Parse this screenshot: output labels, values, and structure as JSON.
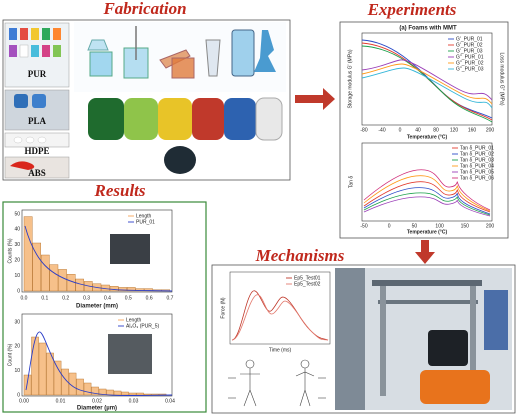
{
  "titles": {
    "fabrication": "Fabrication",
    "experiments": "Experiments",
    "results": "Results",
    "mechanisms": "Mechanisms"
  },
  "fabrication": {
    "materials": [
      "PUR",
      "PLA",
      "HDPE",
      "ABS"
    ]
  },
  "experiments": {
    "chart1": {
      "title": "(a) Foams with MMT",
      "y_label": "Storage modulus G' (MPa)",
      "y2_label": "Loss modulus G'' (MPa)",
      "x_label": "Temperature (°C)",
      "legend": [
        "G'_PUR_01",
        "G'_PUR_02",
        "G'_PUR_03",
        "G''_PUR_01",
        "G''_PUR_02",
        "G''_PUR_03"
      ],
      "xticks": [
        "-80",
        "-40",
        "0",
        "40",
        "80",
        "120",
        "160",
        "200"
      ]
    },
    "chart2": {
      "y_label": "Tan δ",
      "x_label": "Temperature (°C)",
      "legend": [
        "Tan δ_PUR_01",
        "Tan δ_PUR_02",
        "Tan δ_PUR_03",
        "Tan δ_PUR_04",
        "Tan δ_PUR_05",
        "Tan δ_PUR_06"
      ],
      "xticks": [
        "-50",
        "0",
        "50",
        "100",
        "150",
        "200"
      ]
    }
  },
  "results": {
    "chart1": {
      "y_label": "Counts (%)",
      "x_label": "Diameter (mm)",
      "legend": [
        "Length",
        "PUR_01"
      ],
      "xticks": [
        "0.0",
        "0.1",
        "0.2",
        "0.3",
        "0.4",
        "0.5",
        "0.6",
        "0.7"
      ],
      "yticks": [
        "0",
        "10",
        "20",
        "30",
        "40",
        "50"
      ]
    },
    "chart2": {
      "y_label": "Count (%)",
      "x_label": "Diameter (µm)",
      "legend": [
        "Length",
        "Al₂O₃ (PUR_5)"
      ],
      "xticks": [
        "0.00",
        "0.01",
        "0.02",
        "0.03",
        "0.04"
      ],
      "yticks": [
        "0",
        "10",
        "20",
        "30"
      ]
    }
  },
  "mechanisms": {
    "chart": {
      "y_label": "Force (N)",
      "x_label": "Time (ms)",
      "legend": [
        "Ep5_Test01",
        "Ep5_Test02"
      ]
    }
  }
}
